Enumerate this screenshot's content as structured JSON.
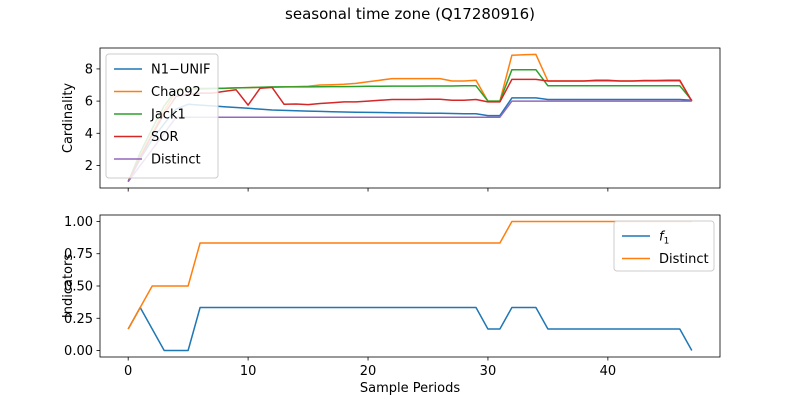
{
  "figure": {
    "title": "seasonal time zone (Q17280916)"
  },
  "colors": {
    "blue": "#1f77b4",
    "orange": "#ff7f0e",
    "green": "#2ca02c",
    "red": "#d62728",
    "purple": "#9467bd"
  },
  "chart_data": [
    {
      "type": "line",
      "ylabel": "Cardinality",
      "xlabel": "",
      "xlim": [
        -2.35,
        49.35
      ],
      "ylim": [
        0.6,
        9.3
      ],
      "xticks": [
        0,
        10,
        20,
        30,
        40
      ],
      "xtick_labels": [],
      "yticks": [
        2,
        4,
        6,
        8
      ],
      "ytick_labels": [
        "2",
        "4",
        "6",
        "8"
      ],
      "legend": "upper left",
      "grid": false,
      "x": [
        0,
        1,
        2,
        3,
        4,
        5,
        6,
        7,
        8,
        9,
        10,
        11,
        12,
        13,
        14,
        15,
        16,
        17,
        18,
        19,
        20,
        21,
        22,
        23,
        24,
        25,
        26,
        27,
        28,
        29,
        30,
        31,
        32,
        33,
        34,
        35,
        36,
        37,
        38,
        39,
        40,
        41,
        42,
        43,
        44,
        45,
        46,
        47
      ],
      "series": [
        {
          "name": "N1−UNIF",
          "color": "blue",
          "values": [
            1.0,
            2.4,
            3.6,
            4.6,
            5.5,
            5.8,
            5.75,
            5.7,
            5.65,
            5.6,
            5.55,
            5.5,
            5.45,
            5.42,
            5.4,
            5.38,
            5.36,
            5.34,
            5.32,
            5.31,
            5.3,
            5.29,
            5.28,
            5.27,
            5.26,
            5.25,
            5.24,
            5.23,
            5.22,
            5.21,
            5.1,
            5.1,
            6.2,
            6.2,
            6.2,
            6.1,
            6.1,
            6.1,
            6.1,
            6.1,
            6.1,
            6.1,
            6.1,
            6.1,
            6.1,
            6.1,
            6.1,
            6.05
          ]
        },
        {
          "name": "Chao92",
          "color": "orange",
          "values": [
            1.0,
            2.6,
            4.0,
            5.4,
            6.6,
            6.8,
            6.8,
            6.8,
            6.8,
            6.82,
            6.84,
            6.85,
            6.85,
            6.88,
            6.9,
            6.92,
            7.0,
            7.02,
            7.05,
            7.1,
            7.2,
            7.3,
            7.4,
            7.4,
            7.4,
            7.4,
            7.4,
            7.25,
            7.25,
            7.3,
            6.0,
            6.0,
            8.85,
            8.88,
            8.9,
            7.25,
            7.25,
            7.25,
            7.25,
            7.25,
            7.25,
            7.25,
            7.25,
            7.25,
            7.25,
            7.25,
            7.25,
            6.0
          ]
        },
        {
          "name": "Jack1",
          "color": "green",
          "values": [
            1.0,
            2.8,
            4.3,
            5.7,
            6.7,
            6.75,
            6.75,
            6.78,
            6.8,
            6.82,
            6.84,
            6.86,
            6.88,
            6.88,
            6.88,
            6.88,
            6.89,
            6.9,
            6.9,
            6.91,
            6.92,
            6.92,
            6.93,
            6.93,
            6.93,
            6.94,
            6.94,
            6.94,
            6.95,
            6.95,
            6.0,
            6.0,
            7.95,
            7.95,
            7.95,
            6.95,
            6.95,
            6.95,
            6.95,
            6.95,
            6.95,
            6.95,
            6.95,
            6.95,
            6.95,
            6.95,
            6.95,
            6.05
          ]
        },
        {
          "name": "SOR",
          "color": "red",
          "values": [
            1.0,
            2.5,
            3.9,
            5.2,
            6.3,
            6.4,
            6.5,
            6.5,
            6.6,
            6.7,
            5.75,
            6.8,
            6.85,
            5.8,
            5.82,
            5.78,
            5.85,
            5.9,
            5.95,
            5.95,
            6.0,
            6.05,
            6.1,
            6.1,
            6.1,
            6.12,
            6.12,
            6.05,
            6.05,
            6.1,
            5.95,
            5.95,
            7.35,
            7.35,
            7.35,
            7.25,
            7.25,
            7.25,
            7.25,
            7.3,
            7.3,
            7.25,
            7.25,
            7.28,
            7.28,
            7.3,
            7.3,
            6.0
          ]
        },
        {
          "name": "Distinct",
          "color": "purple",
          "values": [
            1.0,
            2.0,
            3.0,
            4.0,
            5.0,
            5.0,
            5.0,
            5.0,
            5.0,
            5.0,
            5.0,
            5.0,
            5.0,
            5.0,
            5.0,
            5.0,
            5.0,
            5.0,
            5.0,
            5.0,
            5.0,
            5.0,
            5.0,
            5.0,
            5.0,
            5.0,
            5.0,
            5.0,
            5.0,
            5.0,
            5.0,
            5.0,
            6.0,
            6.0,
            6.0,
            6.0,
            6.0,
            6.0,
            6.0,
            6.0,
            6.0,
            6.0,
            6.0,
            6.0,
            6.0,
            6.0,
            6.0,
            6.0
          ]
        }
      ]
    },
    {
      "type": "line",
      "ylabel": "Indicators",
      "xlabel": "Sample Periods",
      "xlim": [
        -2.35,
        49.35
      ],
      "ylim": [
        -0.05,
        1.05
      ],
      "xticks": [
        0,
        10,
        20,
        30,
        40
      ],
      "xtick_labels": [
        "0",
        "10",
        "20",
        "30",
        "40"
      ],
      "yticks": [
        0.0,
        0.25,
        0.5,
        0.75,
        1.0
      ],
      "ytick_labels": [
        "0.00",
        "0.25",
        "0.50",
        "0.75",
        "1.00"
      ],
      "legend": "upper right",
      "grid": false,
      "x": [
        0,
        1,
        2,
        3,
        4,
        5,
        6,
        7,
        8,
        9,
        10,
        11,
        12,
        13,
        14,
        15,
        16,
        17,
        18,
        19,
        20,
        21,
        22,
        23,
        24,
        25,
        26,
        27,
        28,
        29,
        30,
        31,
        32,
        33,
        34,
        35,
        36,
        37,
        38,
        39,
        40,
        41,
        42,
        43,
        44,
        45,
        46,
        47
      ],
      "series": [
        {
          "name": "f",
          "name_sub": "1",
          "color": "blue",
          "values": [
            0.1667,
            0.3333,
            0.1667,
            0.0,
            0.0,
            0.0,
            0.3333,
            0.3333,
            0.3333,
            0.3333,
            0.3333,
            0.3333,
            0.3333,
            0.3333,
            0.3333,
            0.3333,
            0.3333,
            0.3333,
            0.3333,
            0.3333,
            0.3333,
            0.3333,
            0.3333,
            0.3333,
            0.3333,
            0.3333,
            0.3333,
            0.3333,
            0.3333,
            0.3333,
            0.1667,
            0.1667,
            0.3333,
            0.3333,
            0.3333,
            0.1667,
            0.1667,
            0.1667,
            0.1667,
            0.1667,
            0.1667,
            0.1667,
            0.1667,
            0.1667,
            0.1667,
            0.1667,
            0.1667,
            0.0
          ]
        },
        {
          "name": "Distinct",
          "color": "orange",
          "values": [
            0.1667,
            0.3333,
            0.5,
            0.5,
            0.5,
            0.5,
            0.8333,
            0.8333,
            0.8333,
            0.8333,
            0.8333,
            0.8333,
            0.8333,
            0.8333,
            0.8333,
            0.8333,
            0.8333,
            0.8333,
            0.8333,
            0.8333,
            0.8333,
            0.8333,
            0.8333,
            0.8333,
            0.8333,
            0.8333,
            0.8333,
            0.8333,
            0.8333,
            0.8333,
            0.8333,
            0.8333,
            1.0,
            1.0,
            1.0,
            1.0,
            1.0,
            1.0,
            1.0,
            1.0,
            1.0,
            1.0,
            1.0,
            1.0,
            1.0,
            1.0,
            1.0,
            1.0
          ]
        }
      ]
    }
  ]
}
